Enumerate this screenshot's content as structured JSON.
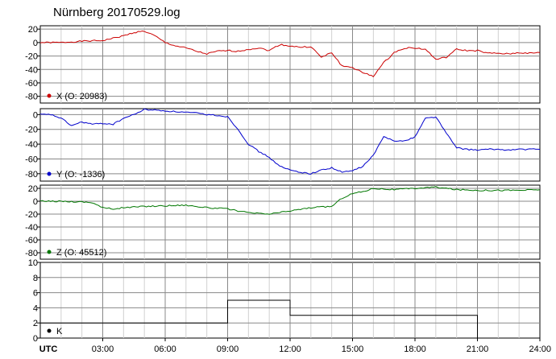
{
  "title": "Nürnberg 20170529.log",
  "chart_data": [
    {
      "type": "line",
      "legend": "X (O: 20983)",
      "color": "#cc0000",
      "ylim": [
        -90,
        25
      ],
      "yticks": [
        20,
        0,
        -20,
        -40,
        -60,
        -80
      ],
      "x": [
        0,
        1,
        2,
        3,
        4,
        4.5,
        5,
        5.5,
        6,
        6.5,
        7,
        7.5,
        8,
        8.5,
        9,
        9.5,
        10,
        10.5,
        11,
        11.5,
        12,
        12.5,
        13,
        13.5,
        14,
        14.5,
        15,
        15.5,
        16,
        16.5,
        17,
        17.5,
        18,
        18.5,
        19,
        19.5,
        20,
        20.5,
        21,
        21.5,
        22,
        22.5,
        23,
        23.5,
        24
      ],
      "values": [
        0,
        0,
        2,
        3,
        10,
        15,
        17,
        10,
        0,
        -5,
        -8,
        -13,
        -17,
        -13,
        -12,
        -13,
        -10,
        -8,
        -12,
        -3,
        -5,
        -7,
        -6,
        -22,
        -15,
        -35,
        -37,
        -45,
        -50,
        -30,
        -15,
        -8,
        -8,
        -10,
        -25,
        -22,
        -10,
        -12,
        -12,
        -16,
        -16,
        -17,
        -15,
        -16,
        -15
      ]
    },
    {
      "type": "line",
      "legend": "Y (O: -1336)",
      "color": "#0000cc",
      "ylim": [
        -90,
        8
      ],
      "yticks": [
        0,
        -20,
        -40,
        -60,
        -80
      ],
      "x": [
        0,
        0.5,
        1,
        1.5,
        2,
        2.5,
        3,
        3.5,
        4,
        4.5,
        5,
        5.5,
        6,
        6.5,
        7,
        7.5,
        8,
        8.5,
        9,
        9.5,
        10,
        10.5,
        11,
        11.5,
        12,
        12.5,
        13,
        13.5,
        14,
        14.5,
        15,
        15.5,
        16,
        16.5,
        17,
        17.5,
        18,
        18.5,
        19,
        19.5,
        20,
        20.5,
        21,
        21.5,
        22,
        22.5,
        23,
        23.5,
        24
      ],
      "values": [
        0,
        0,
        -5,
        -15,
        -10,
        -13,
        -12,
        -13,
        -5,
        0,
        7,
        6,
        5,
        4,
        3,
        2,
        0,
        -1,
        -3,
        -20,
        -40,
        -50,
        -58,
        -70,
        -75,
        -78,
        -80,
        -75,
        -72,
        -78,
        -76,
        -70,
        -55,
        -30,
        -35,
        -36,
        -30,
        -5,
        -3,
        -25,
        -45,
        -47,
        -48,
        -47,
        -47,
        -48,
        -47,
        -47,
        -47
      ]
    },
    {
      "type": "line",
      "legend": "Z (O: 45512)",
      "color": "#007700",
      "ylim": [
        -90,
        25
      ],
      "yticks": [
        20,
        0,
        -20,
        -40,
        -60,
        -80
      ],
      "x": [
        0,
        1,
        2,
        2.5,
        3,
        3.5,
        4,
        5,
        6,
        7,
        8,
        9,
        10,
        11,
        12,
        13,
        14,
        14.5,
        15,
        15.5,
        16,
        17,
        18,
        19,
        20,
        21,
        22,
        23,
        24
      ],
      "values": [
        0,
        0,
        -1,
        -2,
        -10,
        -12,
        -10,
        -8,
        -7,
        -6,
        -10,
        -12,
        -18,
        -20,
        -15,
        -10,
        -8,
        5,
        12,
        15,
        20,
        18,
        20,
        22,
        18,
        17,
        17,
        17,
        18
      ]
    },
    {
      "type": "step",
      "legend": "K",
      "color": "#000000",
      "ylim": [
        0,
        10
      ],
      "yticks": [
        10,
        8,
        6,
        4,
        2,
        0
      ],
      "x": [
        0,
        9,
        12,
        21
      ],
      "values": [
        2,
        5,
        3,
        0
      ]
    }
  ],
  "xaxis": {
    "label": "UTC",
    "ticks": [
      "03:00",
      "06:00",
      "09:00",
      "12:00",
      "15:00",
      "18:00",
      "21:00",
      "24:00"
    ],
    "range": [
      0,
      24
    ]
  }
}
